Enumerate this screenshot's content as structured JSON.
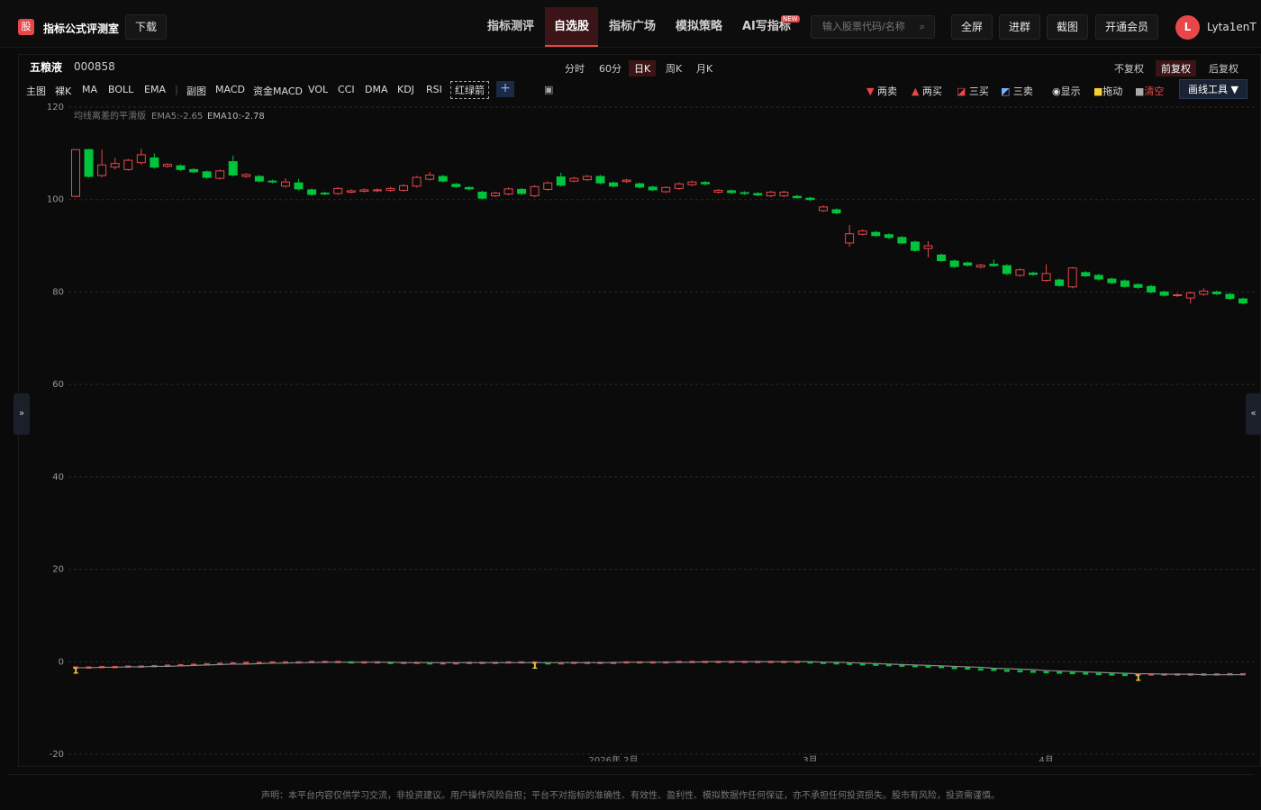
{
  "header": {
    "logo": "股",
    "title": "指标公式评测室",
    "download": "下载",
    "nav": [
      "指标测评",
      "自选股",
      "指标广场",
      "模拟策略",
      "AI写指标"
    ],
    "badge": "NEW",
    "search": "输入股票代码/名称",
    "buttons": [
      "全屏",
      "进群",
      "截图",
      "开通会员"
    ],
    "avatar": "L",
    "username": "Lyta1enT"
  },
  "stock": {
    "name": "五粮液",
    "code": "000858",
    "periods": [
      "分时",
      "60分",
      "日K",
      "周K",
      "月K"
    ],
    "adjust": [
      "不复权",
      "前复权",
      "后复权"
    ]
  },
  "toolbar": {
    "main": [
      "主图",
      "裸K",
      "MA",
      "BOLL",
      "EMA"
    ],
    "sub": [
      "副图",
      "MACD",
      "资金MACD",
      "VOL",
      "CCI",
      "DMA",
      "KDJ",
      "RSI",
      "红绿箭"
    ],
    "add": "+",
    "tools": [
      "两卖",
      "两买",
      "三买",
      "三卖",
      "显示",
      "拖动",
      "清空"
    ],
    "draw_tool": "画线工具 ▼"
  },
  "chart_data": {
    "type": "candlestick",
    "ylim": [
      -20,
      120
    ],
    "yticks": [
      -20,
      0,
      20,
      40,
      60,
      80,
      100,
      120
    ],
    "grid": true,
    "up_color": "#e8474a",
    "down_color": "#00c43c",
    "categories": [
      null,
      null,
      null,
      null,
      null,
      null,
      null,
      null,
      null,
      null,
      null,
      null,
      null,
      null,
      null,
      null,
      null,
      null,
      null,
      null,
      null,
      null,
      null,
      null,
      null,
      null,
      null,
      null,
      null,
      null,
      null,
      null,
      null,
      null,
      null,
      null,
      null,
      null,
      null,
      null,
      null,
      "2026年 2月",
      null,
      null,
      null,
      null,
      null,
      null,
      null,
      null,
      null,
      null,
      null,
      null,
      null,
      null,
      "3月",
      null,
      null,
      null,
      null,
      null,
      null,
      null,
      null,
      null,
      null,
      null,
      null,
      null,
      null,
      null,
      null,
      null,
      "4月",
      null,
      null,
      null,
      null,
      null,
      null,
      null,
      null,
      null,
      null,
      null
    ],
    "ohlc": [
      [
        100.7,
        110.8,
        100.5,
        110.8
      ],
      [
        110.8,
        111,
        104.8,
        105
      ],
      [
        105.2,
        110.8,
        104.8,
        107.5
      ],
      [
        107,
        109,
        106.5,
        107.8
      ],
      [
        106.5,
        108.8,
        106.2,
        108.5
      ],
      [
        108,
        111,
        107.5,
        109.7
      ],
      [
        109,
        110,
        106.7,
        107
      ],
      [
        107.2,
        107.9,
        106.9,
        107.6
      ],
      [
        107.3,
        107.6,
        106.2,
        106.5
      ],
      [
        106.5,
        106.8,
        105.7,
        106
      ],
      [
        106,
        106.3,
        104.5,
        104.8
      ],
      [
        104.6,
        106.5,
        104.3,
        106.2
      ],
      [
        108.2,
        109.5,
        105,
        105.3
      ],
      [
        105,
        105.7,
        104.7,
        105.4
      ],
      [
        105,
        105.3,
        103.7,
        104
      ],
      [
        104,
        104.3,
        103.5,
        103.8
      ],
      [
        102.9,
        104.6,
        102.6,
        103.8
      ],
      [
        103.6,
        104.5,
        102,
        102.3
      ],
      [
        102.1,
        102.4,
        100.8,
        101.1
      ],
      [
        101.4,
        101.7,
        100.9,
        101.2
      ],
      [
        101.3,
        102.7,
        101,
        102.4
      ],
      [
        101.6,
        102.2,
        101.3,
        101.9
      ],
      [
        101.8,
        102.4,
        101.5,
        102.1
      ],
      [
        101.9,
        102.4,
        101.6,
        102.1
      ],
      [
        102,
        102.7,
        101.7,
        102.4
      ],
      [
        102,
        103.3,
        101.7,
        103
      ],
      [
        102.9,
        105.1,
        102.6,
        104.8
      ],
      [
        104.4,
        106,
        104.1,
        105.3
      ],
      [
        105,
        105.3,
        103.7,
        104
      ],
      [
        103.3,
        103.6,
        102.5,
        102.8
      ],
      [
        102.6,
        102.9,
        102,
        102.3
      ],
      [
        101.6,
        101.9,
        100,
        100.3
      ],
      [
        100.8,
        101.7,
        100.5,
        101.4
      ],
      [
        101.2,
        102.6,
        100.9,
        102.3
      ],
      [
        102.2,
        102.5,
        101,
        101.3
      ],
      [
        100.8,
        103.1,
        100.5,
        102.8
      ],
      [
        102.2,
        103.9,
        101.9,
        103.6
      ],
      [
        104.9,
        105.8,
        102.8,
        103.1
      ],
      [
        104,
        104.9,
        103.7,
        104.6
      ],
      [
        104.3,
        105.3,
        104,
        105
      ],
      [
        105,
        105.3,
        103.3,
        103.6
      ],
      [
        103.6,
        103.9,
        102.6,
        102.9
      ],
      [
        103.9,
        104.5,
        103.6,
        104.2
      ],
      [
        103.4,
        103.7,
        102.4,
        102.7
      ],
      [
        102.7,
        103,
        101.8,
        102.1
      ],
      [
        101.7,
        102.9,
        101.4,
        102.6
      ],
      [
        102.4,
        103.7,
        102.1,
        103.4
      ],
      [
        103.2,
        104.1,
        102.9,
        103.8
      ],
      [
        103.7,
        104,
        103.1,
        103.4
      ],
      [
        101.6,
        102.3,
        101.3,
        102
      ],
      [
        101.9,
        102.2,
        101.2,
        101.5
      ],
      [
        101.5,
        101.8,
        101,
        101.3
      ],
      [
        101.3,
        101.6,
        100.7,
        101
      ],
      [
        100.8,
        101.9,
        100.5,
        101.6
      ],
      [
        100.8,
        101.9,
        100.5,
        101.6
      ],
      [
        100.7,
        101,
        100.1,
        100.4
      ],
      [
        100.3,
        100.6,
        99.7,
        100
      ],
      [
        97.6,
        98.7,
        97.3,
        98.4
      ],
      [
        97.8,
        98.1,
        96.8,
        97.1
      ],
      [
        90.6,
        94.5,
        89.8,
        92.6
      ],
      [
        92.5,
        93.5,
        92.2,
        93.2
      ],
      [
        92.9,
        93.2,
        91.9,
        92.2
      ],
      [
        92.4,
        92.7,
        91.5,
        91.8
      ],
      [
        91.8,
        92.1,
        90.3,
        90.6
      ],
      [
        90.8,
        91.1,
        88.7,
        89
      ],
      [
        89.4,
        91,
        87.5,
        90
      ],
      [
        88,
        88.3,
        86.5,
        86.8
      ],
      [
        86.7,
        87,
        85.2,
        85.5
      ],
      [
        86.3,
        86.6,
        85.5,
        85.8
      ],
      [
        85.4,
        86.1,
        85.1,
        85.8
      ],
      [
        86,
        87,
        85.4,
        85.7
      ],
      [
        85.7,
        86,
        83.7,
        84
      ],
      [
        83.6,
        85.1,
        83.3,
        84.8
      ],
      [
        84.1,
        84.4,
        83.5,
        83.8
      ],
      [
        82.5,
        86,
        82.2,
        84
      ],
      [
        82.6,
        82.9,
        81.1,
        81.4
      ],
      [
        81.1,
        85.4,
        80.8,
        85.2
      ],
      [
        84.2,
        84.5,
        83.2,
        83.5
      ],
      [
        83.6,
        83.9,
        82.5,
        82.8
      ],
      [
        82.8,
        83.1,
        81.7,
        82
      ],
      [
        82.4,
        82.7,
        80.9,
        81.2
      ],
      [
        81.6,
        81.9,
        80.7,
        81
      ],
      [
        81.2,
        81.5,
        79.7,
        80
      ],
      [
        80,
        80.3,
        79,
        79.3
      ],
      [
        79.2,
        79.7,
        78.9,
        79.4
      ],
      [
        78.7,
        80.1,
        77.5,
        79.8
      ],
      [
        79.5,
        80.8,
        79.2,
        80.2
      ],
      [
        80,
        80.3,
        79.3,
        79.6
      ],
      [
        79.5,
        79.8,
        78.3,
        78.6
      ],
      [
        78.5,
        78.8,
        77.3,
        77.6
      ]
    ],
    "indicator": {
      "title": "均线离差的平滑版",
      "rise_color": "#e8474a",
      "fall_color": "#00c43c",
      "series": [
        {
          "name": "EMA5:-2.65",
          "color": "#e8474a",
          "values": [
            -1.2,
            -1.2,
            -1.1,
            -1.1,
            -1.0,
            -1.0,
            -0.9,
            -0.8,
            -0.7,
            -0.6,
            -0.5,
            -0.4,
            -0.3,
            -0.2,
            -0.2,
            -0.1,
            -0.1,
            -0.1,
            0,
            0,
            0,
            -0.1,
            -0.1,
            -0.1,
            -0.2,
            -0.2,
            -0.2,
            -0.3,
            -0.3,
            -0.3,
            -0.2,
            -0.2,
            -0.2,
            -0.1,
            -0.1,
            -0.1,
            -0.3,
            -0.3,
            -0.2,
            -0.2,
            -0.2,
            -0.2,
            -0.1,
            -0.1,
            -0.1,
            -0.1,
            0,
            0,
            0,
            0,
            0,
            0,
            0,
            0,
            0,
            0,
            -0.1,
            -0.2,
            -0.3,
            -0.4,
            -0.5,
            -0.6,
            -0.7,
            -0.8,
            -0.9,
            -1.0,
            -1.1,
            -1.3,
            -1.4,
            -1.6,
            -1.7,
            -1.9,
            -2.0,
            -2.1,
            -2.2,
            -2.3,
            -2.4,
            -2.5,
            -2.6,
            -2.7,
            -2.8,
            -2.75,
            -2.7,
            -2.7,
            -2.7,
            -2.7,
            -2.7,
            -2.7,
            -2.65,
            -2.65
          ]
        },
        {
          "name": "EMA10:-2.78",
          "color": "#8a8a8a",
          "values": [
            -1.3,
            -1.3,
            -1.2,
            -1.2,
            -1.1,
            -1.1,
            -1.0,
            -1.0,
            -0.9,
            -0.8,
            -0.7,
            -0.6,
            -0.5,
            -0.5,
            -0.4,
            -0.3,
            -0.3,
            -0.2,
            -0.2,
            -0.1,
            -0.1,
            -0.1,
            -0.1,
            -0.1,
            -0.1,
            -0.2,
            -0.2,
            -0.2,
            -0.2,
            -0.2,
            -0.2,
            -0.2,
            -0.2,
            -0.2,
            -0.2,
            -0.2,
            -0.2,
            -0.2,
            -0.2,
            -0.2,
            -0.2,
            -0.2,
            -0.1,
            -0.1,
            -0.1,
            -0.1,
            -0.1,
            -0.1,
            0,
            0,
            0,
            0,
            0,
            0,
            0,
            0,
            0,
            -0.1,
            -0.1,
            -0.2,
            -0.3,
            -0.4,
            -0.5,
            -0.6,
            -0.7,
            -0.8,
            -0.9,
            -1.0,
            -1.1,
            -1.2,
            -1.4,
            -1.5,
            -1.6,
            -1.7,
            -1.9,
            -2.0,
            -2.1,
            -2.2,
            -2.3,
            -2.4,
            -2.5,
            -2.6,
            -2.6,
            -2.7,
            -2.7,
            -2.7,
            -2.8,
            -2.8,
            -2.8,
            -2.78
          ]
        }
      ],
      "signals": [
        {
          "x": 0,
          "label": "1"
        },
        {
          "x": 35,
          "label": "1"
        },
        {
          "x": 81,
          "label": "1"
        }
      ],
      "signal_color": "#f2d22e"
    }
  },
  "footer": "声明：本平台内容仅供学习交流，非投资建议。用户操作风险自担；平台不对指标的准确性、有效性、盈利性、模拟数据作任何保证，亦不承担任何投资损失。股市有风险，投资需谨慎。"
}
